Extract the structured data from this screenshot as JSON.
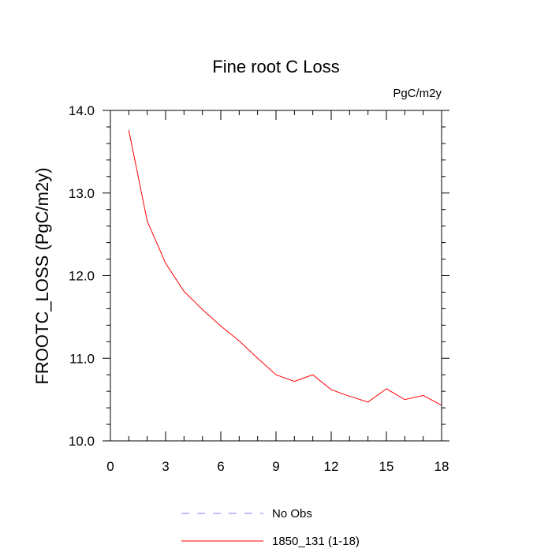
{
  "chart_data": {
    "type": "line",
    "title": "Fine root C Loss",
    "units_label": "PgC/m2y",
    "xlabel": "",
    "ylabel": "FROOTC_LOSS  (PgC/m2y)",
    "xlim": [
      0,
      18
    ],
    "ylim": [
      10.0,
      14.0
    ],
    "x_ticks": [
      0,
      3,
      6,
      9,
      12,
      15,
      18
    ],
    "x_tick_labels": [
      "0",
      "3",
      "6",
      "9",
      "12",
      "15",
      "18"
    ],
    "y_ticks": [
      10.0,
      11.0,
      12.0,
      13.0,
      14.0
    ],
    "y_tick_labels": [
      "10.0",
      "11.0",
      "12.0",
      "13.0",
      "14.0"
    ],
    "grid": false,
    "legend_position": "bottom",
    "legend": [
      {
        "label": "No Obs",
        "color": "#8080ff",
        "dash": "dashed"
      },
      {
        "label": "1850_131 (1-18)",
        "color": "#ff0000",
        "dash": "solid"
      }
    ],
    "series": [
      {
        "name": "1850_131 (1-18)",
        "color": "#ff0000",
        "x": [
          1,
          2,
          3,
          4,
          5,
          6,
          7,
          8,
          9,
          10,
          11,
          12,
          13,
          14,
          15,
          16,
          17,
          18
        ],
        "y": [
          13.76,
          12.66,
          12.15,
          11.81,
          11.59,
          11.39,
          11.21,
          11.0,
          10.8,
          10.72,
          10.8,
          10.62,
          10.54,
          10.47,
          10.63,
          10.5,
          10.55,
          10.43
        ]
      }
    ]
  }
}
